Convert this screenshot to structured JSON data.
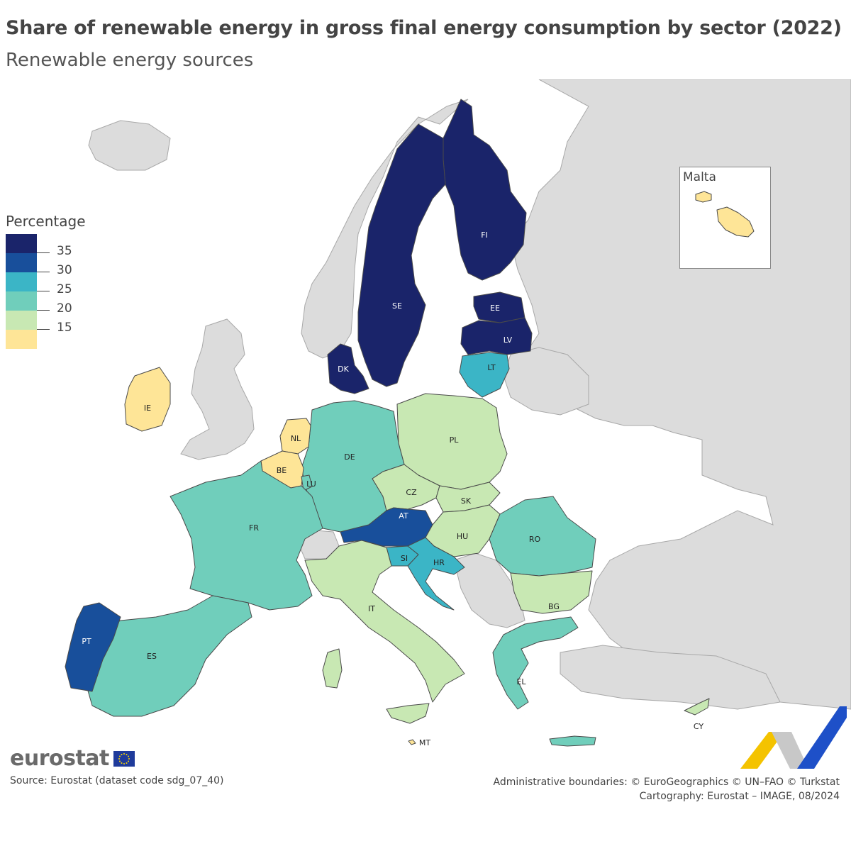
{
  "title": "Share of renewable energy in gross final energy consumption by sector (2022)",
  "subtitle": "Renewable energy sources",
  "legend": {
    "title": "Percentage",
    "classes": [
      {
        "label": "35",
        "color": "#1a246a"
      },
      {
        "label": "30",
        "color": "#184f9b"
      },
      {
        "label": "25",
        "color": "#3bb5c6"
      },
      {
        "label": "20",
        "color": "#70cebb"
      },
      {
        "label": "15",
        "color": "#c8e8b3"
      },
      {
        "label": "",
        "color": "#fee597"
      }
    ]
  },
  "colors": {
    "nonmember": "#dcdcdc",
    "sea": "#ffffff",
    "border": "#4a4a4a"
  },
  "countries": [
    {
      "code": "FI",
      "class": 0
    },
    {
      "code": "SE",
      "class": 0
    },
    {
      "code": "EE",
      "class": 0
    },
    {
      "code": "LV",
      "class": 0
    },
    {
      "code": "DK",
      "class": 0
    },
    {
      "code": "LT",
      "class": 2
    },
    {
      "code": "PL",
      "class": 4
    },
    {
      "code": "DE",
      "class": 3
    },
    {
      "code": "NL",
      "class": 5
    },
    {
      "code": "BE",
      "class": 5
    },
    {
      "code": "LU",
      "class": 3
    },
    {
      "code": "IE",
      "class": 5
    },
    {
      "code": "FR",
      "class": 3
    },
    {
      "code": "CZ",
      "class": 4
    },
    {
      "code": "SK",
      "class": 4
    },
    {
      "code": "AT",
      "class": 1
    },
    {
      "code": "HU",
      "class": 4
    },
    {
      "code": "SI",
      "class": 2
    },
    {
      "code": "HR",
      "class": 2
    },
    {
      "code": "RO",
      "class": 3
    },
    {
      "code": "BG",
      "class": 4
    },
    {
      "code": "IT",
      "class": 4
    },
    {
      "code": "ES",
      "class": 3
    },
    {
      "code": "PT",
      "class": 1
    },
    {
      "code": "EL",
      "class": 3
    },
    {
      "code": "CY",
      "class": 4
    },
    {
      "code": "MT",
      "class": 5
    }
  ],
  "inset": {
    "title": "Malta"
  },
  "branding": {
    "word": "eurostat"
  },
  "source": "Source: Eurostat (dataset code sdg_07_40)",
  "credits": [
    "Administrative boundaries: © EuroGeographics © UN–FAO © Turkstat",
    "Cartography: Eurostat – IMAGE, 08/2024"
  ]
}
